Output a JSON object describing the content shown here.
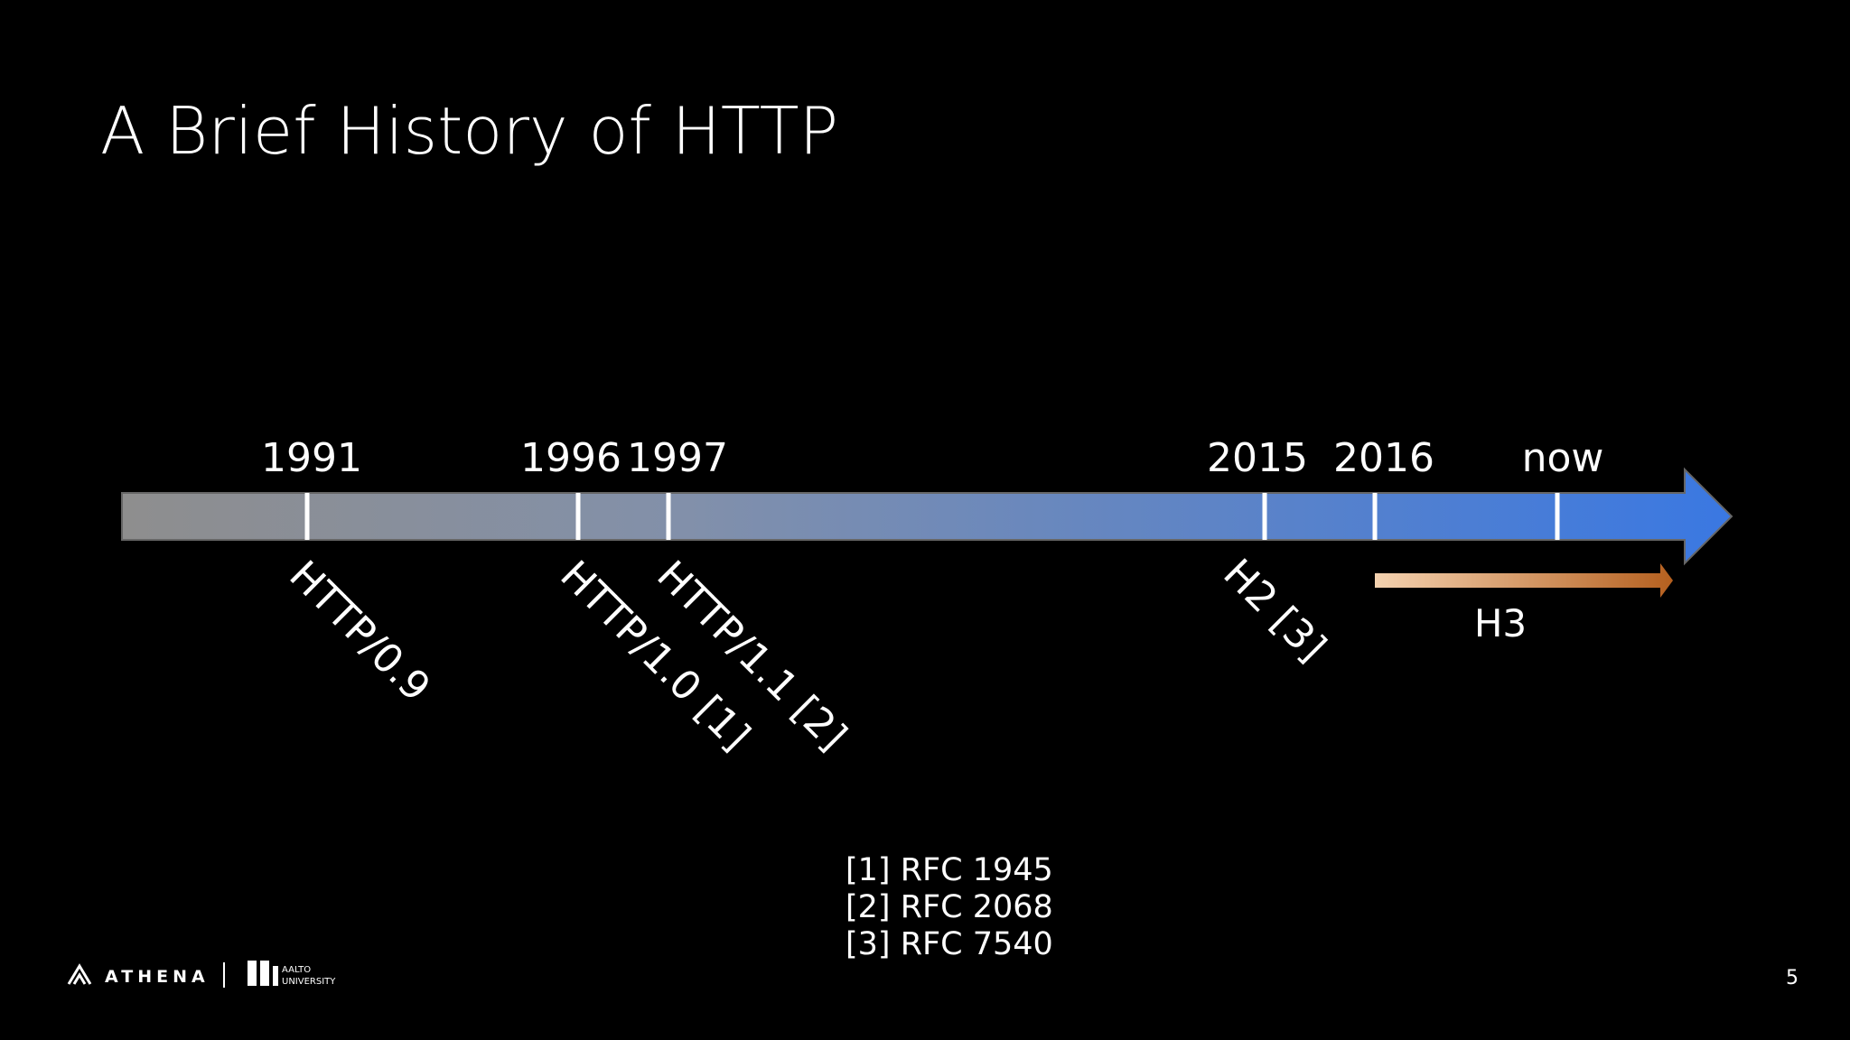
{
  "header": {
    "title": "A Brief History of HTTP"
  },
  "timeline": {
    "years": [
      "1991",
      "1996",
      "1997",
      "2015",
      "2016",
      "now"
    ],
    "versions": [
      "HTTP/0.9",
      "HTTP/1.0 [1]",
      "HTTP/1.1 [2]",
      "H2 [3]"
    ],
    "h3_label": "H3"
  },
  "references": [
    "[1] RFC 1945",
    "[2] RFC 2068",
    "[3] RFC 7540"
  ],
  "footer": {
    "logo_1": "ATHENA",
    "logo_2_line_1": "AALTO",
    "logo_2_line_2": "UNIVERSITY",
    "page_number": "5"
  }
}
